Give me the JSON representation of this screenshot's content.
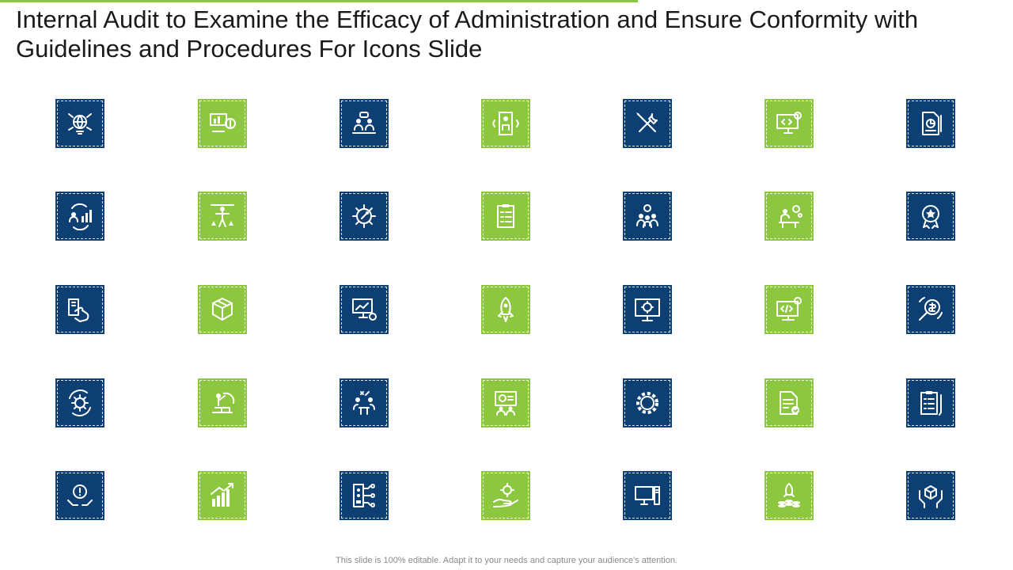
{
  "slide": {
    "title": "Internal Audit to Examine the Efficacy of Administration and Ensure Conformity with Guidelines and Procedures For Icons Slide",
    "footer": "This slide is 100% editable. Adapt it to your needs and capture your audience's attention."
  },
  "colors": {
    "blue": "#0d3f73",
    "green": "#8dc63f",
    "accent": "#8dc63f"
  },
  "icons": [
    [
      {
        "name": "globe-network-icon",
        "color": "blue"
      },
      {
        "name": "presentation-money-icon",
        "color": "green"
      },
      {
        "name": "team-discussion-icon",
        "color": "blue"
      },
      {
        "name": "elevator-user-icon",
        "color": "green"
      },
      {
        "name": "tools-wrench-screwdriver-icon",
        "color": "blue"
      },
      {
        "name": "monitor-code-gear-icon",
        "color": "green"
      },
      {
        "name": "document-chart-icon",
        "color": "blue"
      }
    ],
    [
      {
        "name": "user-growth-cycle-icon",
        "color": "blue"
      },
      {
        "name": "human-measurement-icon",
        "color": "green"
      },
      {
        "name": "gear-wrench-icon",
        "color": "blue"
      },
      {
        "name": "checklist-clipboard-icon",
        "color": "green"
      },
      {
        "name": "team-gear-icon",
        "color": "blue"
      },
      {
        "name": "person-desk-gear-icon",
        "color": "green"
      },
      {
        "name": "award-badge-star-icon",
        "color": "blue"
      }
    ],
    [
      {
        "name": "hand-card-icon",
        "color": "blue"
      },
      {
        "name": "box-package-icon",
        "color": "green"
      },
      {
        "name": "monitor-chart-gear-icon",
        "color": "blue"
      },
      {
        "name": "rocket-launch-icon",
        "color": "green"
      },
      {
        "name": "monitor-gear-icon",
        "color": "blue"
      },
      {
        "name": "code-gear-screen-icon",
        "color": "green"
      },
      {
        "name": "search-dollar-icon",
        "color": "blue"
      }
    ],
    [
      {
        "name": "gear-refresh-icon",
        "color": "blue"
      },
      {
        "name": "presenter-chart-icon",
        "color": "green"
      },
      {
        "name": "meeting-strategy-icon",
        "color": "blue"
      },
      {
        "name": "board-presentation-icon",
        "color": "green"
      },
      {
        "name": "large-gear-icon",
        "color": "blue"
      },
      {
        "name": "document-check-icon",
        "color": "green"
      },
      {
        "name": "clipboard-list-icon",
        "color": "blue"
      }
    ],
    [
      {
        "name": "hands-warning-icon",
        "color": "blue"
      },
      {
        "name": "growth-bars-arrow-icon",
        "color": "green"
      },
      {
        "name": "server-network-icon",
        "color": "blue"
      },
      {
        "name": "hand-gear-icon",
        "color": "green"
      },
      {
        "name": "desktop-computer-icon",
        "color": "blue"
      },
      {
        "name": "rocket-coins-icon",
        "color": "green"
      },
      {
        "name": "hands-cube-icon",
        "color": "blue"
      }
    ]
  ]
}
